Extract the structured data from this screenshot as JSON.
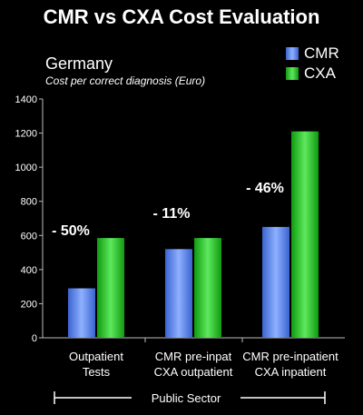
{
  "chart_data": {
    "type": "bar",
    "title": "CMR vs CXA Cost Evaluation",
    "subtitle": "Germany",
    "caption": "Cost per correct diagnosis (Euro)",
    "categories": [
      [
        "Outpatient",
        "Tests"
      ],
      [
        "CMR pre-inpat",
        "CXA outpatient"
      ],
      [
        "CMR pre-inpatient",
        "CXA inpatient"
      ]
    ],
    "series": [
      {
        "name": "CMR",
        "color": "#5b83e6",
        "values": [
          290,
          520,
          650
        ]
      },
      {
        "name": "CXA",
        "color": "#1fc11f",
        "values": [
          585,
          585,
          1210
        ]
      }
    ],
    "annotations": [
      "- 50%",
      "- 11%",
      "- 46%"
    ],
    "ylim": [
      0,
      1400
    ],
    "yticks": [
      "0",
      "200",
      "400",
      "600",
      "800",
      "1000",
      "1200",
      "1400"
    ],
    "footer": "Public Sector",
    "legend_position": "top-right"
  }
}
